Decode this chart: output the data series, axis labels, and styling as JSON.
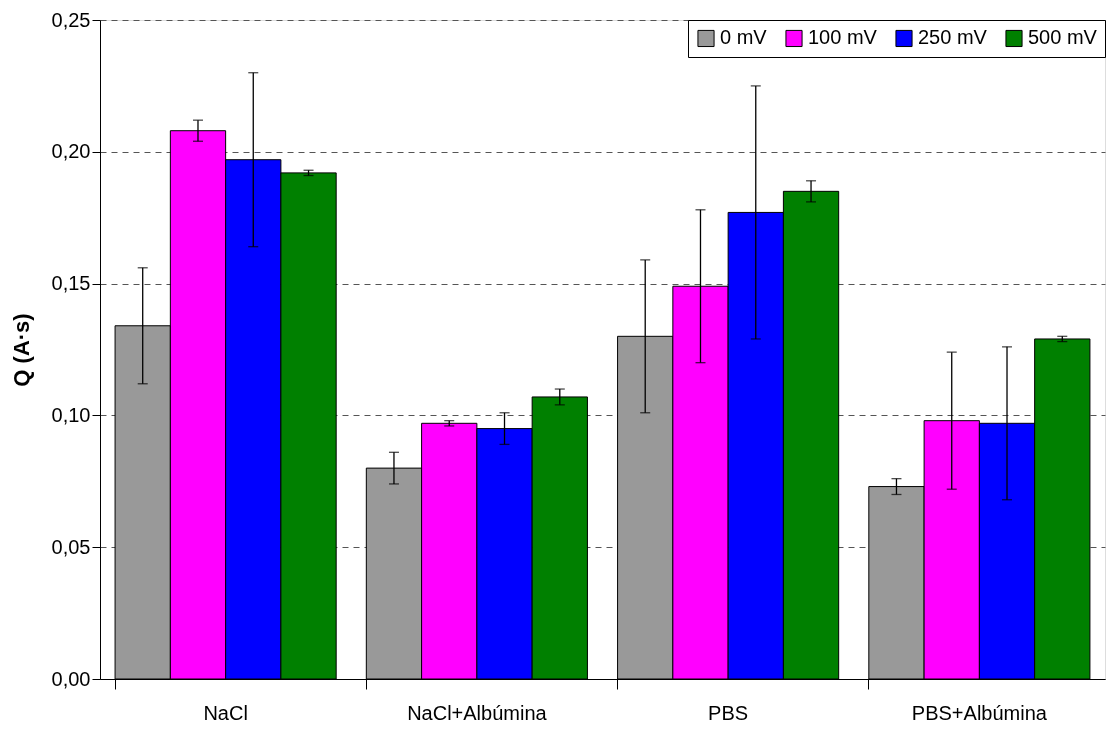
{
  "chart_data": {
    "type": "bar",
    "ylabel": "Q (A·s)",
    "categories": [
      "NaCl",
      "NaCl+Albúmina",
      "PBS",
      "PBS+Albúmina"
    ],
    "series": [
      {
        "name": "0 mV",
        "color": "#999999",
        "values": [
          0.134,
          0.08,
          0.13,
          0.073
        ],
        "errors": [
          0.022,
          0.006,
          0.029,
          0.003
        ]
      },
      {
        "name": "100 mV",
        "color": "#ff00ff",
        "values": [
          0.208,
          0.097,
          0.149,
          0.098
        ],
        "errors": [
          0.004,
          0.001,
          0.029,
          0.026
        ]
      },
      {
        "name": "250 mV",
        "color": "#0000ff",
        "values": [
          0.197,
          0.095,
          0.177,
          0.097
        ],
        "errors": [
          0.033,
          0.006,
          0.048,
          0.029
        ]
      },
      {
        "name": "500 mV",
        "color": "#008000",
        "values": [
          0.192,
          0.107,
          0.185,
          0.129
        ],
        "errors": [
          0.001,
          0.003,
          0.004,
          0.001
        ]
      }
    ],
    "ylim": [
      0,
      0.25
    ],
    "yticks": [
      {
        "value": 0,
        "label": "0,00"
      },
      {
        "value": 0.05,
        "label": "0,05"
      },
      {
        "value": 0.1,
        "label": "0,10"
      },
      {
        "value": 0.15,
        "label": "0,15"
      },
      {
        "value": 0.2,
        "label": "0,20"
      },
      {
        "value": 0.25,
        "label": "0,25"
      }
    ],
    "grid": "y",
    "legend": "top right"
  }
}
